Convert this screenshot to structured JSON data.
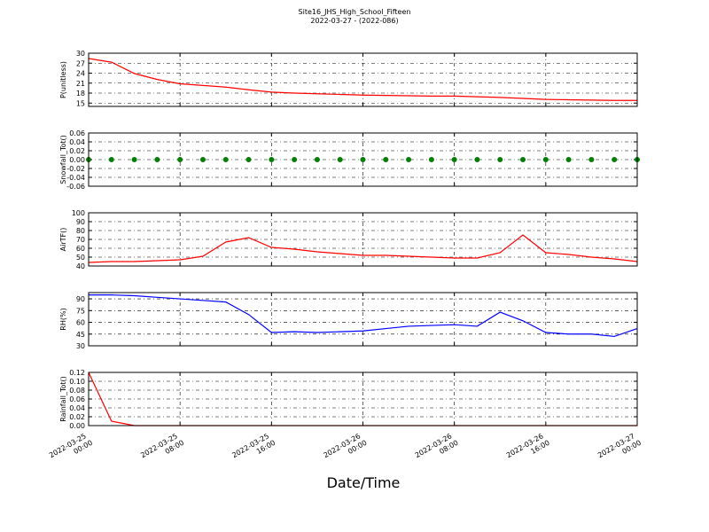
{
  "figure": {
    "title": "Site16_JHS_High_School_Fifteen",
    "subtitle": "2022-03-27 - (2022-086)",
    "xlabel": "Date/Time",
    "x": [
      "2022-03-25 00:00",
      "2022-03-25 02:00",
      "2022-03-25 04:00",
      "2022-03-25 06:00",
      "2022-03-25 08:00",
      "2022-03-25 10:00",
      "2022-03-25 12:00",
      "2022-03-25 14:00",
      "2022-03-25 16:00",
      "2022-03-25 18:00",
      "2022-03-25 20:00",
      "2022-03-25 22:00",
      "2022-03-26 00:00",
      "2022-03-26 02:00",
      "2022-03-26 04:00",
      "2022-03-26 06:00",
      "2022-03-26 08:00",
      "2022-03-26 10:00",
      "2022-03-26 12:00",
      "2022-03-26 14:00",
      "2022-03-26 16:00",
      "2022-03-26 18:00",
      "2022-03-26 20:00",
      "2022-03-26 22:00",
      "2022-03-27 00:00"
    ],
    "xlim": [
      "2022-03-25 00:00",
      "2022-03-27 00:00"
    ],
    "xticks": [
      "2022-03-25 00:00",
      "2022-03-25 08:00",
      "2022-03-25 16:00",
      "2022-03-26 00:00",
      "2022-03-26 08:00",
      "2022-03-26 16:00",
      "2022-03-27 00:00"
    ]
  },
  "chart_data": [
    {
      "type": "line",
      "ylabel": "P(unitless)",
      "color": "#ff0000",
      "grid": true,
      "values": [
        28.4,
        27.3,
        23.9,
        22.1,
        20.8,
        20.3,
        19.8,
        19.0,
        18.3,
        18.0,
        17.8,
        17.6,
        17.4,
        17.3,
        17.2,
        17.1,
        17.1,
        16.9,
        16.7,
        16.4,
        16.1,
        16.0,
        15.9,
        15.8,
        15.8
      ],
      "ylim": [
        14,
        30
      ],
      "yticks": [
        15,
        18,
        21,
        24,
        27,
        30
      ]
    },
    {
      "type": "scatter",
      "ylabel": "Snowfall_Tot()",
      "color": "#008000",
      "grid": true,
      "values": [
        0,
        0,
        0,
        0,
        0,
        0,
        0,
        0,
        0,
        0,
        0,
        0,
        0,
        0,
        0,
        0,
        0,
        0,
        0,
        0,
        0,
        0,
        0,
        0,
        0
      ],
      "ylim": [
        -0.06,
        0.06
      ],
      "yticks": [
        -0.06,
        -0.04,
        -0.02,
        {
          "value": 0,
          "label": "0.00"
        },
        0.02,
        0.04,
        0.06
      ]
    },
    {
      "type": "line",
      "ylabel": "AirTF()",
      "color": "#ff0000",
      "grid": true,
      "values": [
        44,
        45,
        45,
        46,
        47,
        51,
        67,
        72,
        61,
        59,
        56,
        54,
        52,
        52,
        51,
        50,
        49,
        49,
        55,
        75,
        55,
        53,
        50,
        48,
        45
      ],
      "ylim": [
        40,
        100
      ],
      "yticks": [
        40,
        50,
        60,
        70,
        80,
        90,
        100
      ]
    },
    {
      "type": "line",
      "ylabel": "RH(%)",
      "color": "#0000ff",
      "grid": true,
      "values": [
        95,
        95,
        94,
        92,
        90,
        88,
        86,
        70,
        47,
        48,
        47,
        48,
        49,
        52,
        55,
        56,
        57,
        55,
        73,
        62,
        47,
        45,
        45,
        42,
        52
      ],
      "ylim": [
        30,
        98
      ],
      "yticks": [
        30,
        45,
        60,
        75,
        90
      ]
    },
    {
      "type": "line",
      "ylabel": "Rainfall_Tot()",
      "color": "#ff0000",
      "grid": true,
      "xticklabels": true,
      "values": [
        0.12,
        0.01,
        0,
        0,
        0,
        0,
        0,
        0,
        0,
        0,
        0,
        0,
        0,
        0,
        0,
        0,
        0,
        0,
        0,
        0,
        0,
        0,
        0,
        0,
        0
      ],
      "ylim": [
        0,
        0.12
      ],
      "yticks": [
        {
          "value": 0,
          "label": "0.00"
        },
        0.02,
        0.04,
        0.06,
        0.08,
        {
          "value": 0.1,
          "label": "0.10"
        },
        0.12
      ]
    }
  ]
}
